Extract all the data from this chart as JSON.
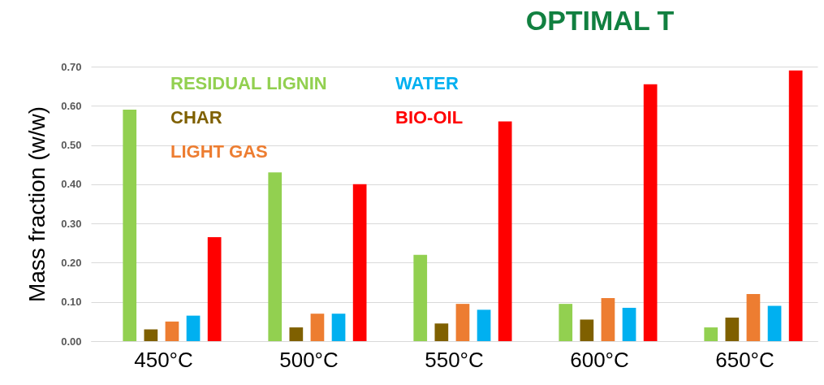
{
  "chart_data": {
    "type": "bar",
    "ylabel": "Mass fraction (w/w)",
    "categories": [
      "450°C",
      "500°C",
      "550°C",
      "600°C",
      "650°C"
    ],
    "series": [
      {
        "name": "RESIDUAL LIGNIN",
        "color": "#92d050",
        "values": [
          0.59,
          0.43,
          0.22,
          0.095,
          0.035
        ]
      },
      {
        "name": "CHAR",
        "color": "#7f6000",
        "values": [
          0.03,
          0.035,
          0.045,
          0.055,
          0.06
        ]
      },
      {
        "name": "LIGHT GAS",
        "color": "#ed7d31",
        "values": [
          0.05,
          0.07,
          0.095,
          0.11,
          0.12
        ]
      },
      {
        "name": "WATER",
        "color": "#00b0f0",
        "values": [
          0.065,
          0.07,
          0.08,
          0.085,
          0.09
        ]
      },
      {
        "name": "BIO-OIL",
        "color": "#ff0000",
        "values": [
          0.265,
          0.4,
          0.56,
          0.655,
          0.69
        ]
      }
    ],
    "ylim": [
      0,
      0.7
    ],
    "yticks": [
      {
        "value": 0,
        "label": "0.00"
      },
      {
        "value": 0.1,
        "label": "0.10"
      },
      {
        "value": 0.2,
        "label": "0.20"
      },
      {
        "value": 0.3,
        "label": "0.30"
      },
      {
        "value": 0.4,
        "label": "0.40"
      },
      {
        "value": 0.5,
        "label": "0.50"
      },
      {
        "value": 0.6,
        "label": "0.60"
      },
      {
        "value": 0.7,
        "label": "0.70"
      }
    ],
    "grid": "y",
    "legend": "top left",
    "annotations": [
      "OPTIMAL T"
    ]
  }
}
